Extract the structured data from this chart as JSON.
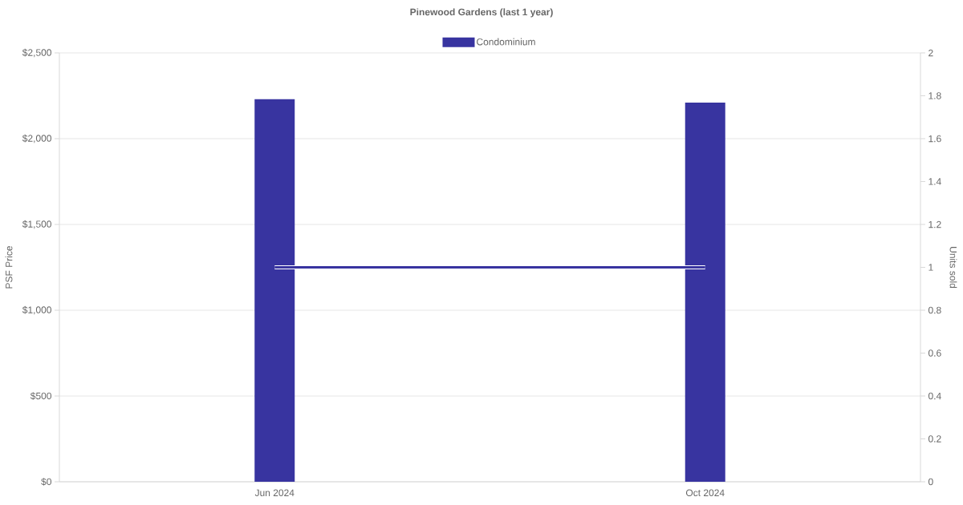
{
  "chart_data": {
    "type": "bar",
    "title": "Pinewood Gardens (last 1 year)",
    "categories": [
      "Jun 2024",
      "Oct 2024"
    ],
    "series": [
      {
        "name": "Condominium",
        "color": "#3834a0",
        "values": [
          2230,
          2210
        ]
      },
      {
        "type": "line",
        "axis": "y2",
        "color": "#3834a0",
        "values": [
          1,
          1
        ]
      }
    ],
    "ylabel": "PSF Price",
    "y2label": "Units sold",
    "ylim": [
      0,
      2500
    ],
    "yticks": [
      {
        "value": 0,
        "label": "$0"
      },
      {
        "value": 500,
        "label": "$500"
      },
      {
        "value": 1000,
        "label": "$1,000"
      },
      {
        "value": 1500,
        "label": "$1,500"
      },
      {
        "value": 2000,
        "label": "$2,000"
      },
      {
        "value": 2500,
        "label": "$2,500"
      }
    ],
    "y2lim": [
      0,
      2
    ],
    "y2ticks": [
      0,
      0.2,
      0.4,
      0.6,
      0.8,
      1,
      1.2,
      1.4,
      1.6,
      1.8,
      2
    ],
    "grid": "y",
    "legend": "top"
  }
}
